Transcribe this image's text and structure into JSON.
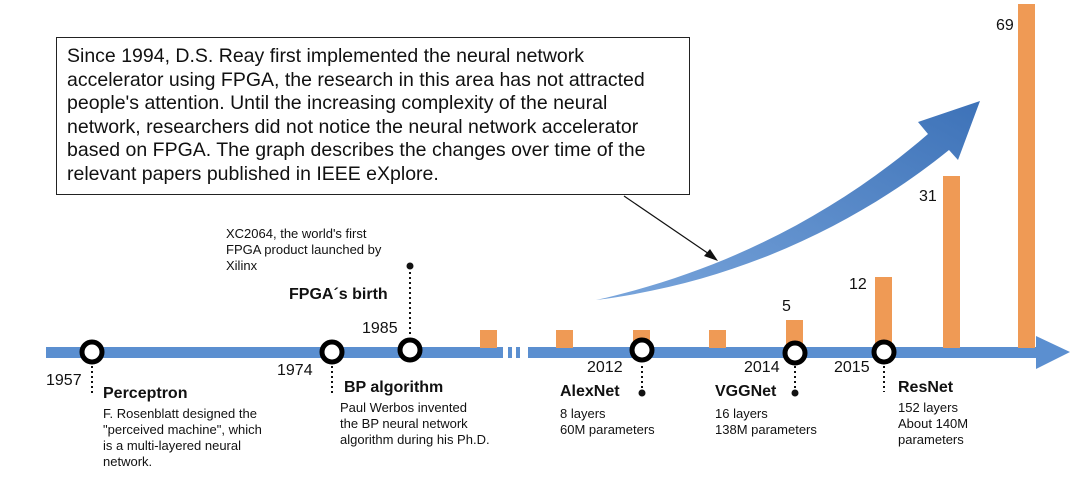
{
  "callout": {
    "lines": [
      "Since 1994, D.S. Reay first implemented the neural network",
      "accelerator using FPGA, the research in this area has not attracted",
      "people's attention. Until the increasing complexity of the neural",
      "network, researchers did not notice the neural network accelerator",
      "based on FPGA. The graph describes the changes over time of the",
      "relevant papers published in IEEE eXplore."
    ]
  },
  "milestones": [
    {
      "year": "1957",
      "name": "Perceptron",
      "desc": [
        "F. Rosenblatt designed the",
        "\"perceived machine\", which",
        "is a multi-layered neural",
        "network."
      ]
    },
    {
      "year": "1974",
      "name": "BP algorithm",
      "desc": [
        "Paul Werbos invented",
        "the BP neural network",
        "algorithm during his Ph.D."
      ]
    },
    {
      "year": "1985",
      "name": "FPGA´s birth",
      "desc": [
        "XC2064, the world's first",
        "FPGA product launched by",
        "Xilinx"
      ]
    },
    {
      "year": "2012",
      "name": "AlexNet",
      "desc": [
        "8 layers",
        "60M parameters"
      ]
    },
    {
      "year": "2014",
      "name": "VGGNet",
      "desc": [
        "16 layers",
        "138M parameters"
      ]
    },
    {
      "year": "2015",
      "name": "ResNet",
      "desc": [
        "152 layers",
        "About 140M",
        "parameters"
      ]
    }
  ],
  "bar_labels": [
    "5",
    "12",
    "31",
    "69"
  ],
  "colors": {
    "timeline": "#5b8fd0",
    "bar": "#ef9a55",
    "trend_arrow": "#4a7ec1"
  }
}
